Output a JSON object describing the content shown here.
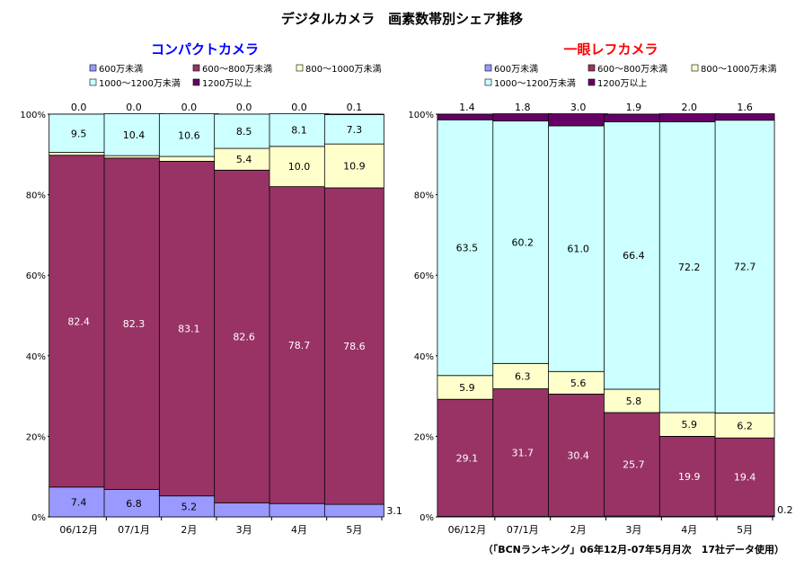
{
  "title": "デジタルカメラ　画素数帯別シェア推移",
  "source_note": "（「BCNランキング」06年12月-07年5月月次　17社データ使用）",
  "chart_data": [
    {
      "type": "bar",
      "stacked": true,
      "title": "コンパクトカメラ",
      "title_color": "#0000ff",
      "categories": [
        "06/12月",
        "07/1月",
        "2月",
        "3月",
        "4月",
        "5月"
      ],
      "ylim": [
        0,
        100
      ],
      "yticks": [
        "0%",
        "20%",
        "40%",
        "60%",
        "80%",
        "100%"
      ],
      "legend_position": "top",
      "series": [
        {
          "name": "600万未満",
          "color": "#9999ff",
          "values": [
            7.4,
            6.8,
            5.2,
            3.5,
            3.3,
            3.1
          ]
        },
        {
          "name": "600～800万未満",
          "color": "#993366",
          "values": [
            82.4,
            82.3,
            83.1,
            82.6,
            78.7,
            78.6
          ]
        },
        {
          "name": "800～1000万未満",
          "color": "#ffffcc",
          "values": [
            0.7,
            0.6,
            1.2,
            5.4,
            10.0,
            10.9
          ]
        },
        {
          "name": "1000～1200万未満",
          "color": "#ccffff",
          "values": [
            9.5,
            10.4,
            10.6,
            8.5,
            8.1,
            7.3
          ]
        },
        {
          "name": "1200万以上",
          "color": "#660066",
          "values": [
            0.0,
            0.0,
            0.0,
            0.0,
            0.0,
            0.1
          ]
        }
      ]
    },
    {
      "type": "bar",
      "stacked": true,
      "title": "一眼レフカメラ",
      "title_color": "#ff0000",
      "categories": [
        "06/12月",
        "07/1月",
        "2月",
        "3月",
        "4月",
        "5月"
      ],
      "ylim": [
        0,
        100
      ],
      "yticks": [
        "0%",
        "20%",
        "40%",
        "60%",
        "80%",
        "100%"
      ],
      "legend_position": "top",
      "series": [
        {
          "name": "600万未満",
          "color": "#9999ff",
          "values": [
            0.1,
            0.1,
            0.1,
            0.2,
            0.1,
            0.2
          ]
        },
        {
          "name": "600～800万未満",
          "color": "#993366",
          "values": [
            29.1,
            31.7,
            30.4,
            25.7,
            19.9,
            19.4
          ]
        },
        {
          "name": "800～1000万未満",
          "color": "#ffffcc",
          "values": [
            5.9,
            6.3,
            5.6,
            5.8,
            5.9,
            6.2
          ]
        },
        {
          "name": "1000～1200万未満",
          "color": "#ccffff",
          "values": [
            63.5,
            60.2,
            61.0,
            66.4,
            72.2,
            72.7
          ]
        },
        {
          "name": "1200万以上",
          "color": "#660066",
          "values": [
            1.4,
            1.8,
            3.0,
            1.9,
            2.0,
            1.6
          ]
        }
      ]
    }
  ]
}
